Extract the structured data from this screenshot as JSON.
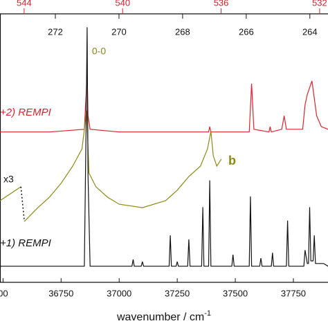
{
  "chart_data": {
    "type": "line",
    "xlabel": "wavenumber / cm",
    "xlabel_sup": "-1",
    "xlim": [
      36487,
      37899
    ],
    "xticks": [
      {
        "value": 36500,
        "label": "00"
      },
      36750,
      37000,
      37250,
      37500,
      37750
    ],
    "top_axis": {
      "xlim": [
        273.74,
        263.43
      ],
      "xticks": [
        272,
        270,
        268,
        266,
        264
      ],
      "color": "#111111"
    },
    "top_axis2": {
      "xlim": [
        544.98,
        531.66
      ],
      "xticks": [
        544,
        540,
        536,
        532
      ],
      "color": "#e0202a"
    },
    "ylim": [
      0,
      100
    ],
    "series": [
      {
        "name": "+2) REMPI",
        "color": "#e0202a",
        "x": [
          36487,
          36700,
          36850,
          36858,
          36862,
          36866,
          36875,
          37000,
          37200,
          37385,
          37390,
          37395,
          37560,
          37570,
          37580,
          37645,
          37650,
          37655,
          37700,
          37710,
          37720,
          37790,
          37800,
          37810,
          37830,
          37850,
          37870,
          37899
        ],
        "values": [
          56,
          56,
          57,
          70,
          78,
          62,
          57,
          56,
          56,
          56,
          58,
          56,
          56,
          74,
          57,
          56,
          58,
          56,
          57,
          62,
          57,
          57,
          66,
          70,
          75,
          62,
          58,
          57
        ]
      },
      {
        "name": "b",
        "color": "#8c8a12",
        "x": [
          36487,
          36577,
          36585,
          36592,
          36650,
          36700,
          36750,
          36800,
          36840,
          36860,
          36870,
          36900,
          36950,
          37000,
          37100,
          37200,
          37250,
          37300,
          37350,
          37380,
          37395,
          37405,
          37420,
          37440
        ],
        "values": [
          30.4,
          35.6,
          null,
          22.7,
          27.8,
          31.7,
          36.9,
          43.3,
          49.7,
          64,
          40.7,
          35.6,
          31.7,
          29.1,
          27.8,
          30.4,
          34.3,
          39.4,
          43.3,
          49.7,
          56.2,
          47.2,
          43.3,
          45.9
        ]
      },
      {
        "name": "+1) REMPI",
        "color": "#111111",
        "x": [
          36487,
          36850,
          36858,
          36862,
          36866,
          36875,
          37055,
          37060,
          37065,
          37095,
          37100,
          37105,
          37215,
          37220,
          37225,
          37245,
          37250,
          37255,
          37295,
          37300,
          37305,
          37355,
          37360,
          37365,
          37385,
          37390,
          37395,
          37485,
          37490,
          37495,
          37560,
          37565,
          37570,
          37605,
          37610,
          37615,
          37655,
          37660,
          37665,
          37720,
          37725,
          37730,
          37795,
          37800,
          37810,
          37815,
          37820,
          37825,
          37835,
          37840,
          37845,
          37880,
          37899
        ],
        "values": [
          6,
          6,
          60,
          95,
          40,
          6,
          6,
          8.5,
          6,
          6,
          7.7,
          6,
          6,
          17.5,
          6,
          6,
          7.7,
          6,
          6,
          16,
          6,
          6,
          28,
          6,
          6,
          38,
          6,
          6,
          10.3,
          6,
          6,
          32,
          6,
          6,
          9,
          6,
          6,
          11,
          6,
          6,
          23,
          6,
          6,
          12,
          7,
          7,
          28,
          8,
          8,
          17.5,
          7,
          7,
          6
        ]
      }
    ],
    "annotations": [
      "0-0",
      "x3"
    ]
  }
}
